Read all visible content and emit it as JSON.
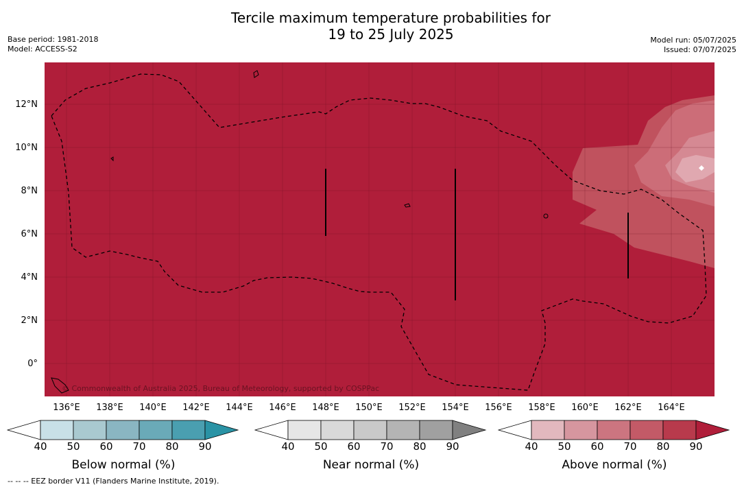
{
  "header": {
    "title_line1": "Tercile maximum temperature probabilities for",
    "title_line2": "19 to 25 July 2025",
    "base_period": "Base period: 1981-2018",
    "model": "Model: ACCESS-S2",
    "model_run": "Model run: 05/07/2025",
    "issued": "Issued: 07/07/2025"
  },
  "map": {
    "copyright": "© Commonwealth of Australia 2025, Bureau of Meteorology, supported by COSPPac",
    "lat_labels": [
      "12°N",
      "10°N",
      "8°N",
      "6°N",
      "4°N",
      "2°N",
      "0°"
    ],
    "lon_labels": [
      "136°E",
      "138°E",
      "140°E",
      "142°E",
      "144°E",
      "146°E",
      "148°E",
      "150°E",
      "152°E",
      "154°E",
      "156°E",
      "158°E",
      "160°E",
      "162°E",
      "164°E"
    ],
    "fill_color": "#b01e3a",
    "eez_style": "dashed black"
  },
  "legends": [
    {
      "title": "Below normal (%)",
      "ticks": [
        "40",
        "50",
        "60",
        "70",
        "80",
        "90"
      ],
      "colors": [
        "#ffffff",
        "#c8e0e7",
        "#a9c9d0",
        "#8ab6c2",
        "#6aaab8",
        "#4a9fb0",
        "#2a93a5"
      ]
    },
    {
      "title": "Near normal (%)",
      "ticks": [
        "40",
        "50",
        "60",
        "70",
        "80",
        "90"
      ],
      "colors": [
        "#ffffff",
        "#e6e6e6",
        "#d9d9d9",
        "#c9c9c9",
        "#b4b4b4",
        "#a0a0a0",
        "#808080"
      ]
    },
    {
      "title": "Above normal (%)",
      "ticks": [
        "40",
        "50",
        "60",
        "70",
        "80",
        "90"
      ],
      "colors": [
        "#ffffff",
        "#e2b8be",
        "#d6969f",
        "#cc7580",
        "#c35a67",
        "#b83a4c",
        "#b01e3a"
      ]
    }
  ],
  "footnote": "--  --  -- EEZ border V11 (Flanders Marine Institute, 2019)."
}
